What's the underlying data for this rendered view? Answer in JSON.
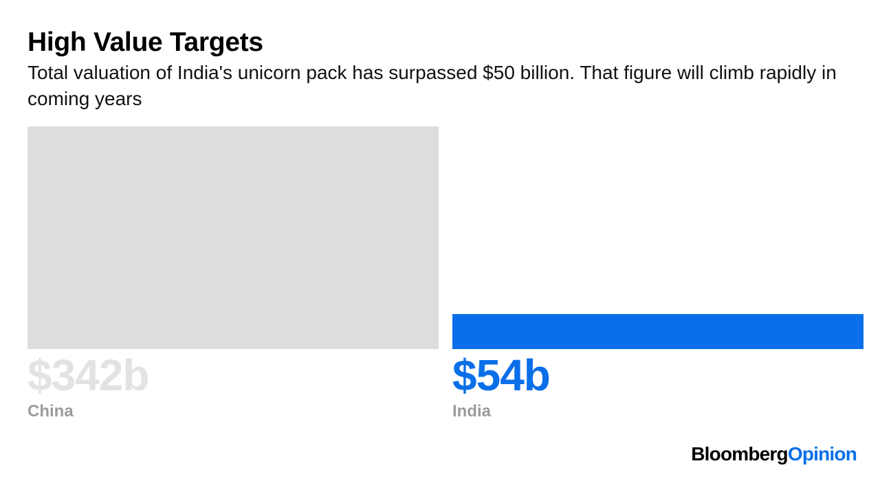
{
  "header": {
    "title": "High Value Targets",
    "subtitle": "Total valuation of India's unicorn pack has surpassed $50 billion. That figure will climb rapidly in coming years"
  },
  "chart_data": {
    "type": "bar",
    "title": "High Value Targets",
    "subtitle": "Total valuation of India's unicorn pack has surpassed $50 billion. That figure will climb rapidly in coming years",
    "categories": [
      "China",
      "India"
    ],
    "values": [
      342,
      54
    ],
    "value_labels": [
      "$342b",
      "$54b"
    ],
    "colors": [
      "#dddddd",
      "#0a6fe8"
    ],
    "label_colors": [
      "#e3e3e3",
      "#0a6fe8"
    ],
    "ylim": [
      0,
      342
    ],
    "grid": false,
    "legend": "none"
  },
  "footer": {
    "brand_primary": "Bloomberg",
    "brand_secondary": "Opinion"
  }
}
